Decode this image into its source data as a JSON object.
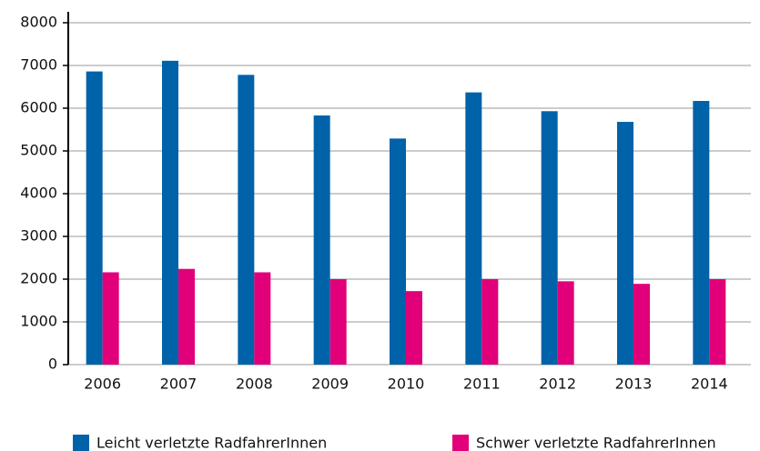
{
  "chart_data": {
    "type": "bar",
    "categories": [
      "2006",
      "2007",
      "2008",
      "2009",
      "2010",
      "2011",
      "2012",
      "2013",
      "2014"
    ],
    "series": [
      {
        "name": "Leicht verletzte RadfahrerInnen",
        "color": "#0062a8",
        "values": [
          6860,
          7110,
          6780,
          5830,
          5290,
          6370,
          5930,
          5680,
          6170
        ]
      },
      {
        "name": "Schwer verletzte RadfahrerInnen",
        "color": "#e2007a",
        "values": [
          2160,
          2240,
          2160,
          2000,
          1720,
          2000,
          1950,
          1890,
          2000
        ]
      }
    ],
    "ylim": [
      0,
      8000
    ],
    "yticks": [
      0,
      1000,
      2000,
      3000,
      4000,
      5000,
      6000,
      7000,
      8000
    ],
    "grid": true,
    "legend": "bottom"
  }
}
